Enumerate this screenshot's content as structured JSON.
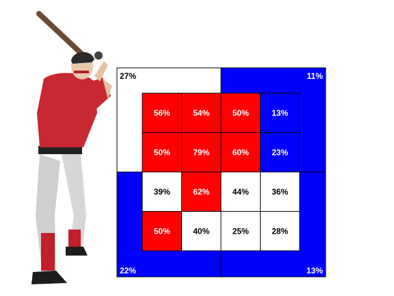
{
  "colors": {
    "hot": "#ff0000",
    "cold": "#0000ff",
    "neutral": "#ffffff",
    "hot_text": "#ffffff",
    "cold_text": "#ffffff",
    "neutral_text": "#000000"
  },
  "chart_data": {
    "type": "heatmap",
    "title": "",
    "inner_grid": {
      "rows": 4,
      "cols": 4,
      "values": [
        [
          "56%",
          "54%",
          "50%",
          "13%"
        ],
        [
          "50%",
          "79%",
          "60%",
          "23%"
        ],
        [
          "39%",
          "62%",
          "44%",
          "36%"
        ],
        [
          "50%",
          "40%",
          "25%",
          "28%"
        ]
      ],
      "heat": [
        [
          "hot",
          "hot",
          "hot",
          "cold"
        ],
        [
          "hot",
          "hot",
          "hot",
          "cold"
        ],
        [
          "neutral",
          "hot",
          "neutral",
          "neutral"
        ],
        [
          "hot",
          "neutral",
          "neutral",
          "neutral"
        ]
      ]
    },
    "outer_quadrants": [
      {
        "position": "top-left",
        "value": "27%",
        "heat": "neutral"
      },
      {
        "position": "top-right",
        "value": "11%",
        "heat": "cold"
      },
      {
        "position": "bottom-left",
        "value": "22%",
        "heat": "cold"
      },
      {
        "position": "bottom-right",
        "value": "13%",
        "heat": "cold"
      }
    ]
  }
}
